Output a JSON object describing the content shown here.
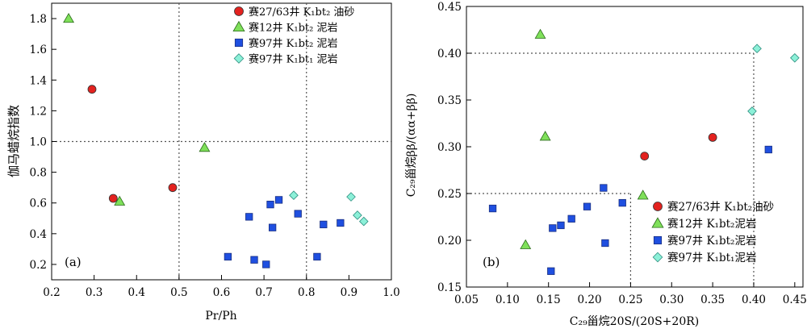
{
  "chart_data": [
    {
      "type": "scatter",
      "panel_label": "(a)",
      "xlabel": "Pr/Ph",
      "ylabel": "伽马蜡烷指数",
      "xlim": [
        0.2,
        1.0
      ],
      "ylim": [
        0.1,
        1.9
      ],
      "xticks": [
        "0.2",
        "0.3",
        "0.4",
        "0.5",
        "0.6",
        "0.7",
        "0.8",
        "0.9",
        "1.0"
      ],
      "yticks": [
        "0.2",
        "0.4",
        "0.6",
        "0.8",
        "1.0",
        "1.2",
        "1.4",
        "1.6",
        "1.8"
      ],
      "grid": false,
      "ref_lines": {
        "x": [
          0.5,
          0.8
        ],
        "y": [
          1.0
        ]
      },
      "legend_position": "top-right",
      "series": [
        {
          "name": "赛27/63井 K₁bt₂ 油砂",
          "marker": "circle",
          "color": "#e3221f",
          "points": [
            [
              0.295,
              1.34
            ],
            [
              0.345,
              0.63
            ],
            [
              0.485,
              0.7
            ]
          ]
        },
        {
          "name": "赛12井 K₁bt₂ 泥岩",
          "marker": "triangle",
          "color": "#7fe05a",
          "points": [
            [
              0.24,
              1.8
            ],
            [
              0.56,
              0.96
            ],
            [
              0.36,
              0.61
            ]
          ]
        },
        {
          "name": "赛97井 K₁bt₂ 泥岩",
          "marker": "square",
          "color": "#1f4fe0",
          "points": [
            [
              0.615,
              0.25
            ],
            [
              0.665,
              0.51
            ],
            [
              0.677,
              0.23
            ],
            [
              0.705,
              0.2
            ],
            [
              0.715,
              0.59
            ],
            [
              0.72,
              0.44
            ],
            [
              0.735,
              0.62
            ],
            [
              0.78,
              0.53
            ],
            [
              0.825,
              0.25
            ],
            [
              0.84,
              0.46
            ],
            [
              0.88,
              0.47
            ]
          ]
        },
        {
          "name": "赛97井 K₁bt₁ 泥岩",
          "marker": "diamond",
          "color": "#8cf0d8",
          "points": [
            [
              0.77,
              0.65
            ],
            [
              0.905,
              0.64
            ],
            [
              0.92,
              0.52
            ],
            [
              0.935,
              0.48
            ]
          ]
        }
      ]
    },
    {
      "type": "scatter",
      "panel_label": "(b)",
      "xlabel": "C₂₉甾烷20S/(20S+20R)",
      "ylabel": "C₂₉甾烷ββ/(αα+ββ)",
      "xlim": [
        0.05,
        0.46
      ],
      "ylim": [
        0.15,
        0.45
      ],
      "xticks": [
        "0.05",
        "0.10",
        "0.15",
        "0.20",
        "0.25",
        "0.30",
        "0.35",
        "0.40",
        "0.45"
      ],
      "yticks": [
        "0.15",
        "0.20",
        "0.25",
        "0.30",
        "0.35",
        "0.40",
        "0.45"
      ],
      "grid": false,
      "ref_boxes": [
        {
          "x": 0.25,
          "y": 0.25
        },
        {
          "x": 0.4,
          "y": 0.4
        }
      ],
      "legend_position": "bottom-right",
      "series": [
        {
          "name": "赛27/63井 K₁bt₂油砂",
          "marker": "circle",
          "color": "#e3221f",
          "points": [
            [
              0.267,
              0.29
            ],
            [
              0.35,
              0.31
            ]
          ]
        },
        {
          "name": "赛12井 K₁bt₂泥岩",
          "marker": "triangle",
          "color": "#7fe05a",
          "points": [
            [
              0.14,
              0.42
            ],
            [
              0.146,
              0.311
            ],
            [
              0.265,
              0.248
            ],
            [
              0.122,
              0.195
            ]
          ]
        },
        {
          "name": "赛97井 K₁bt₂泥岩",
          "marker": "square",
          "color": "#1f4fe0",
          "points": [
            [
              0.082,
              0.234
            ],
            [
              0.153,
              0.167
            ],
            [
              0.155,
              0.213
            ],
            [
              0.165,
              0.216
            ],
            [
              0.178,
              0.223
            ],
            [
              0.197,
              0.236
            ],
            [
              0.217,
              0.256
            ],
            [
              0.219,
              0.197
            ],
            [
              0.24,
              0.24
            ],
            [
              0.418,
              0.297
            ]
          ]
        },
        {
          "name": "赛97井 K₁bt₁泥岩",
          "marker": "diamond",
          "color": "#8cf0d8",
          "points": [
            [
              0.398,
              0.338
            ],
            [
              0.404,
              0.405
            ],
            [
              0.45,
              0.395
            ]
          ]
        }
      ]
    }
  ],
  "colors": {
    "axis": "#000000",
    "refline": "#555555"
  }
}
